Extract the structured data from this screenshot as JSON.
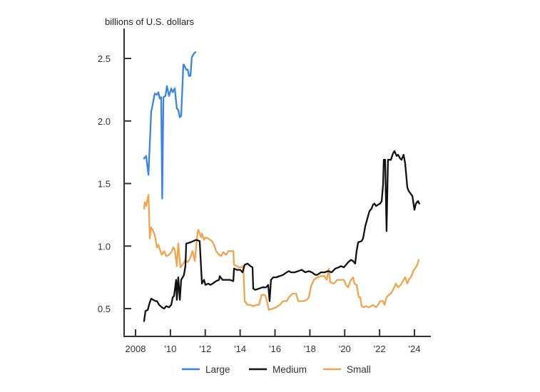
{
  "chart_data": {
    "type": "line",
    "title": "",
    "unit_label": "billions of U.S. dollars",
    "xlabel": "",
    "ylabel": "billions of U.S. dollars",
    "xlim": [
      2007.35,
      2024.9
    ],
    "ylim": [
      0.28,
      2.74
    ],
    "grid": false,
    "legend_position": "bottom",
    "x_ticks": [
      {
        "value": 2008,
        "label": "2008"
      },
      {
        "value": 2010,
        "label": "'10"
      },
      {
        "value": 2012,
        "label": "'12"
      },
      {
        "value": 2014,
        "label": "'14"
      },
      {
        "value": 2016,
        "label": "'16"
      },
      {
        "value": 2018,
        "label": "'18"
      },
      {
        "value": 2020,
        "label": "'20"
      },
      {
        "value": 2022,
        "label": "'22"
      },
      {
        "value": 2024,
        "label": "'24"
      }
    ],
    "y_ticks": [
      {
        "value": 0.5,
        "label": "0.5"
      },
      {
        "value": 1.0,
        "label": "1.0"
      },
      {
        "value": 1.5,
        "label": "1.5"
      },
      {
        "value": 2.0,
        "label": "2.0"
      },
      {
        "value": 2.5,
        "label": "2.5"
      }
    ],
    "series": [
      {
        "name": "Large",
        "color": "#3a84e0",
        "points": [
          [
            2008.49,
            1.7
          ],
          [
            2008.61,
            1.72
          ],
          [
            2008.74,
            1.57
          ],
          [
            2008.9,
            2.08
          ],
          [
            2008.94,
            2.1
          ],
          [
            2009.1,
            2.22
          ],
          [
            2009.23,
            2.21
          ],
          [
            2009.31,
            2.23
          ],
          [
            2009.39,
            2.18
          ],
          [
            2009.47,
            2.19
          ],
          [
            2009.53,
            1.38
          ],
          [
            2009.6,
            2.19
          ],
          [
            2009.72,
            2.2
          ],
          [
            2009.8,
            2.28
          ],
          [
            2009.92,
            2.2
          ],
          [
            2010.05,
            2.26
          ],
          [
            2010.13,
            2.23
          ],
          [
            2010.25,
            2.26
          ],
          [
            2010.37,
            2.1
          ],
          [
            2010.45,
            2.09
          ],
          [
            2010.54,
            2.03
          ],
          [
            2010.62,
            2.04
          ],
          [
            2010.74,
            2.45
          ],
          [
            2010.78,
            2.45
          ],
          [
            2010.91,
            2.41
          ],
          [
            2010.99,
            2.41
          ],
          [
            2011.07,
            2.36
          ],
          [
            2011.15,
            2.36
          ],
          [
            2011.23,
            2.51
          ],
          [
            2011.36,
            2.54
          ],
          [
            2011.44,
            2.55
          ]
        ]
      },
      {
        "name": "Medium",
        "color": "#111111",
        "points": [
          [
            2008.49,
            0.4
          ],
          [
            2008.57,
            0.48
          ],
          [
            2008.7,
            0.49
          ],
          [
            2008.82,
            0.55
          ],
          [
            2008.9,
            0.58
          ],
          [
            2009.02,
            0.57
          ],
          [
            2009.15,
            0.56
          ],
          [
            2009.23,
            0.56
          ],
          [
            2009.35,
            0.53
          ],
          [
            2009.51,
            0.51
          ],
          [
            2009.64,
            0.5
          ],
          [
            2009.76,
            0.52
          ],
          [
            2009.92,
            0.51
          ],
          [
            2010.05,
            0.53
          ],
          [
            2010.13,
            0.59
          ],
          [
            2010.21,
            0.6
          ],
          [
            2010.33,
            0.73
          ],
          [
            2010.37,
            0.57
          ],
          [
            2010.45,
            0.75
          ],
          [
            2010.54,
            0.57
          ],
          [
            2010.62,
            0.73
          ],
          [
            2010.74,
            0.76
          ],
          [
            2010.78,
            0.77
          ],
          [
            2010.86,
            0.84
          ],
          [
            2010.91,
            1.02
          ],
          [
            2011.15,
            1.03
          ],
          [
            2011.48,
            1.05
          ],
          [
            2011.68,
            1.04
          ],
          [
            2011.81,
            0.7
          ],
          [
            2011.93,
            0.73
          ],
          [
            2012.01,
            0.69
          ],
          [
            2012.17,
            0.7
          ],
          [
            2012.3,
            0.69
          ],
          [
            2012.42,
            0.7
          ],
          [
            2012.62,
            0.72
          ],
          [
            2012.79,
            0.73
          ],
          [
            2012.83,
            0.76
          ],
          [
            2012.99,
            0.73
          ],
          [
            2013.11,
            0.73
          ],
          [
            2013.24,
            0.73
          ],
          [
            2013.4,
            0.73
          ],
          [
            2013.61,
            0.72
          ],
          [
            2013.65,
            0.82
          ],
          [
            2013.81,
            0.81
          ],
          [
            2014.01,
            0.81
          ],
          [
            2014.14,
            0.79
          ],
          [
            2014.26,
            0.85
          ],
          [
            2014.42,
            0.86
          ],
          [
            2014.59,
            0.84
          ],
          [
            2014.71,
            0.83
          ],
          [
            2014.75,
            0.66
          ],
          [
            2014.87,
            0.65
          ],
          [
            2015.08,
            0.66
          ],
          [
            2015.28,
            0.67
          ],
          [
            2015.49,
            0.67
          ],
          [
            2015.61,
            0.69
          ],
          [
            2015.69,
            0.56
          ],
          [
            2015.77,
            0.73
          ],
          [
            2015.9,
            0.75
          ],
          [
            2016.06,
            0.75
          ],
          [
            2016.27,
            0.76
          ],
          [
            2016.47,
            0.77
          ],
          [
            2016.67,
            0.79
          ],
          [
            2016.8,
            0.8
          ],
          [
            2016.92,
            0.79
          ],
          [
            2017.12,
            0.79
          ],
          [
            2017.33,
            0.8
          ],
          [
            2017.53,
            0.81
          ],
          [
            2017.74,
            0.79
          ],
          [
            2017.94,
            0.8
          ],
          [
            2018.11,
            0.79
          ],
          [
            2018.31,
            0.77
          ],
          [
            2018.43,
            0.77
          ],
          [
            2018.64,
            0.79
          ],
          [
            2018.84,
            0.79
          ],
          [
            2019.05,
            0.8
          ],
          [
            2019.25,
            0.79
          ],
          [
            2019.46,
            0.82
          ],
          [
            2019.66,
            0.83
          ],
          [
            2019.78,
            0.84
          ],
          [
            2019.95,
            0.83
          ],
          [
            2020.07,
            0.85
          ],
          [
            2020.19,
            0.87
          ],
          [
            2020.36,
            0.89
          ],
          [
            2020.48,
            0.88
          ],
          [
            2020.6,
            0.86
          ],
          [
            2020.68,
            0.96
          ],
          [
            2020.77,
            1.03
          ],
          [
            2020.97,
            1.04
          ],
          [
            2021.05,
            1.06
          ],
          [
            2021.18,
            1.16
          ],
          [
            2021.3,
            1.22
          ],
          [
            2021.42,
            1.28
          ],
          [
            2021.54,
            1.3
          ],
          [
            2021.62,
            1.33
          ],
          [
            2021.71,
            1.34
          ],
          [
            2021.79,
            1.32
          ],
          [
            2021.91,
            1.33
          ],
          [
            2022.03,
            1.34
          ],
          [
            2022.12,
            1.36
          ],
          [
            2022.2,
            1.49
          ],
          [
            2022.24,
            1.69
          ],
          [
            2022.32,
            1.69
          ],
          [
            2022.4,
            1.12
          ],
          [
            2022.48,
            1.69
          ],
          [
            2022.65,
            1.69
          ],
          [
            2022.77,
            1.74
          ],
          [
            2022.85,
            1.76
          ],
          [
            2022.98,
            1.72
          ],
          [
            2023.06,
            1.73
          ],
          [
            2023.18,
            1.7
          ],
          [
            2023.26,
            1.69
          ],
          [
            2023.38,
            1.73
          ],
          [
            2023.47,
            1.66
          ],
          [
            2023.59,
            1.47
          ],
          [
            2023.67,
            1.44
          ],
          [
            2023.83,
            1.41
          ],
          [
            2023.88,
            1.4
          ],
          [
            2024.0,
            1.29
          ],
          [
            2024.08,
            1.34
          ],
          [
            2024.2,
            1.36
          ],
          [
            2024.28,
            1.34
          ]
        ]
      },
      {
        "name": "Small",
        "color": "#f0a44e",
        "points": [
          [
            2008.49,
            1.3
          ],
          [
            2008.53,
            1.35
          ],
          [
            2008.61,
            1.32
          ],
          [
            2008.74,
            1.41
          ],
          [
            2008.82,
            1.06
          ],
          [
            2008.9,
            1.15
          ],
          [
            2008.98,
            1.13
          ],
          [
            2009.1,
            1.09
          ],
          [
            2009.23,
            0.99
          ],
          [
            2009.31,
            1.01
          ],
          [
            2009.43,
            0.96
          ],
          [
            2009.51,
            0.93
          ],
          [
            2009.64,
            0.96
          ],
          [
            2009.76,
            0.92
          ],
          [
            2009.92,
            0.93
          ],
          [
            2010.05,
            0.95
          ],
          [
            2010.17,
            0.99
          ],
          [
            2010.25,
            0.97
          ],
          [
            2010.37,
            0.84
          ],
          [
            2010.45,
            1.02
          ],
          [
            2010.58,
            0.83
          ],
          [
            2010.74,
            0.86
          ],
          [
            2010.86,
            0.89
          ],
          [
            2010.99,
            0.87
          ],
          [
            2011.15,
            0.91
          ],
          [
            2011.27,
            0.96
          ],
          [
            2011.4,
            0.88
          ],
          [
            2011.56,
            1.11
          ],
          [
            2011.6,
            1.13
          ],
          [
            2011.76,
            1.07
          ],
          [
            2011.81,
            1.1
          ],
          [
            2011.93,
            1.05
          ],
          [
            2012.01,
            1.07
          ],
          [
            2012.17,
            1.06
          ],
          [
            2012.38,
            1.04
          ],
          [
            2012.5,
            1.01
          ],
          [
            2012.62,
            0.96
          ],
          [
            2012.79,
            0.93
          ],
          [
            2012.91,
            0.92
          ],
          [
            2013.03,
            0.95
          ],
          [
            2013.2,
            0.93
          ],
          [
            2013.32,
            0.96
          ],
          [
            2013.48,
            0.96
          ],
          [
            2013.61,
            0.96
          ],
          [
            2013.65,
            0.85
          ],
          [
            2013.81,
            0.84
          ],
          [
            2013.93,
            0.83
          ],
          [
            2014.06,
            0.83
          ],
          [
            2014.18,
            0.84
          ],
          [
            2014.26,
            0.56
          ],
          [
            2014.42,
            0.53
          ],
          [
            2014.55,
            0.53
          ],
          [
            2014.75,
            0.52
          ],
          [
            2014.96,
            0.53
          ],
          [
            2015.08,
            0.53
          ],
          [
            2015.24,
            0.61
          ],
          [
            2015.41,
            0.61
          ],
          [
            2015.49,
            0.59
          ],
          [
            2015.65,
            0.49
          ],
          [
            2015.86,
            0.5
          ],
          [
            2016.06,
            0.51
          ],
          [
            2016.27,
            0.53
          ],
          [
            2016.47,
            0.56
          ],
          [
            2016.67,
            0.56
          ],
          [
            2016.8,
            0.59
          ],
          [
            2017.0,
            0.62
          ],
          [
            2017.21,
            0.62
          ],
          [
            2017.33,
            0.56
          ],
          [
            2017.62,
            0.56
          ],
          [
            2017.82,
            0.57
          ],
          [
            2017.94,
            0.59
          ],
          [
            2018.07,
            0.68
          ],
          [
            2018.23,
            0.73
          ],
          [
            2018.43,
            0.75
          ],
          [
            2018.64,
            0.76
          ],
          [
            2018.84,
            0.76
          ],
          [
            2018.97,
            0.73
          ],
          [
            2019.09,
            0.82
          ],
          [
            2019.17,
            0.71
          ],
          [
            2019.37,
            0.7
          ],
          [
            2019.58,
            0.73
          ],
          [
            2019.78,
            0.73
          ],
          [
            2019.95,
            0.73
          ],
          [
            2020.07,
            0.69
          ],
          [
            2020.19,
            0.67
          ],
          [
            2020.36,
            0.73
          ],
          [
            2020.48,
            0.75
          ],
          [
            2020.56,
            0.7
          ],
          [
            2020.68,
            0.69
          ],
          [
            2020.81,
            0.59
          ],
          [
            2020.89,
            0.59
          ],
          [
            2020.97,
            0.52
          ],
          [
            2021.09,
            0.51
          ],
          [
            2021.22,
            0.52
          ],
          [
            2021.38,
            0.51
          ],
          [
            2021.5,
            0.52
          ],
          [
            2021.62,
            0.53
          ],
          [
            2021.79,
            0.51
          ],
          [
            2021.91,
            0.53
          ],
          [
            2022.03,
            0.56
          ],
          [
            2022.2,
            0.56
          ],
          [
            2022.28,
            0.53
          ],
          [
            2022.4,
            0.59
          ],
          [
            2022.53,
            0.61
          ],
          [
            2022.65,
            0.62
          ],
          [
            2022.81,
            0.66
          ],
          [
            2022.94,
            0.7
          ],
          [
            2023.06,
            0.67
          ],
          [
            2023.22,
            0.69
          ],
          [
            2023.34,
            0.72
          ],
          [
            2023.47,
            0.75
          ],
          [
            2023.59,
            0.7
          ],
          [
            2023.67,
            0.73
          ],
          [
            2023.83,
            0.76
          ],
          [
            2023.96,
            0.81
          ],
          [
            2024.08,
            0.83
          ],
          [
            2024.16,
            0.85
          ],
          [
            2024.24,
            0.89
          ]
        ]
      }
    ]
  }
}
